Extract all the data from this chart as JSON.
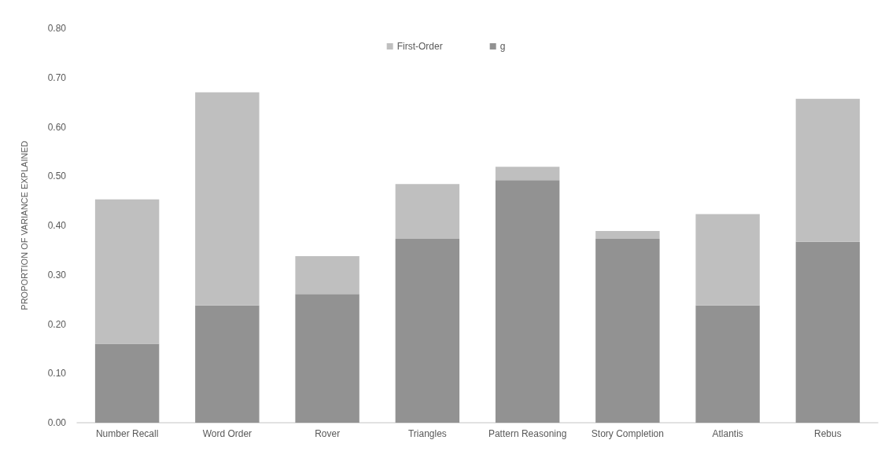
{
  "chart_data": {
    "type": "bar",
    "stacked": true,
    "ylabel": "PROPORTION OF VARIANCE EXPLAINED",
    "categories": [
      "Number Recall",
      "Word Order",
      "Rover",
      "Triangles",
      "Pattern Reasoning",
      "Story Completion",
      "Atlantis",
      "Rebus"
    ],
    "series": [
      {
        "name": "g",
        "color": "#929292",
        "values": [
          0.16,
          0.238,
          0.261,
          0.373,
          0.492,
          0.373,
          0.238,
          0.367
        ]
      },
      {
        "name": "First-Order",
        "color": "#bfbfbf",
        "values": [
          0.293,
          0.432,
          0.077,
          0.111,
          0.027,
          0.016,
          0.185,
          0.29
        ]
      }
    ],
    "ylim": [
      0,
      0.8
    ],
    "yticks": [
      {
        "value": 0,
        "label": "0.00"
      },
      {
        "value": 0.1,
        "label": "0.10"
      },
      {
        "value": 0.2,
        "label": "0.20"
      },
      {
        "value": 0.3,
        "label": "0.30"
      },
      {
        "value": 0.4,
        "label": "0.40"
      },
      {
        "value": 0.5,
        "label": "0.50"
      },
      {
        "value": 0.6,
        "label": "0.60"
      },
      {
        "value": 0.7,
        "label": "0.70"
      },
      {
        "value": 0.8,
        "label": "0.80"
      }
    ],
    "grid": false,
    "legend": "top"
  }
}
